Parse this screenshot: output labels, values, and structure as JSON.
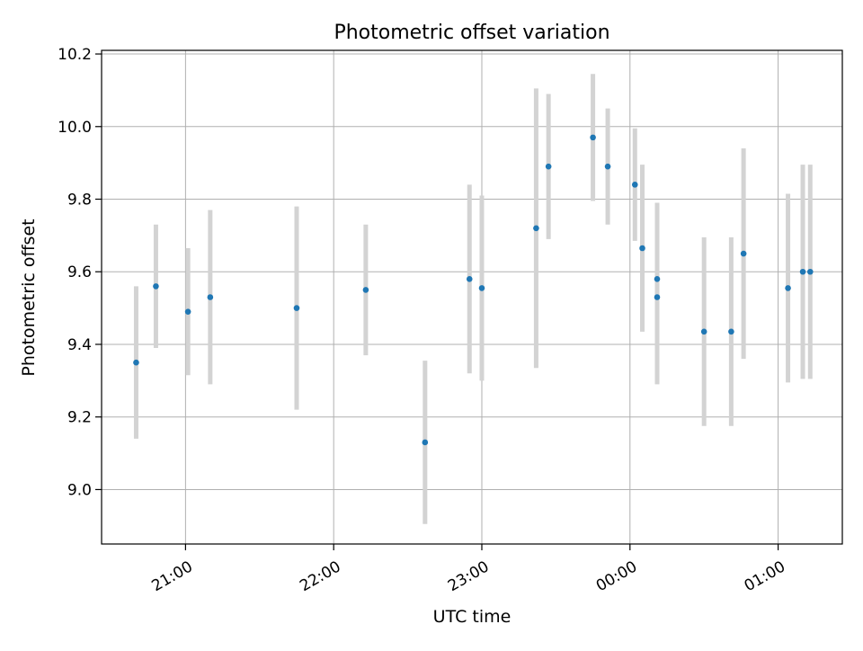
{
  "chart_data": {
    "type": "scatter",
    "title": "Photometric offset variation",
    "xlabel": "UTC time",
    "ylabel": "Photometric offset",
    "x_unit": "UTC time of day (date rolls over after 24:00)",
    "xlim": [
      "20:26",
      "25:26"
    ],
    "ylim": [
      8.85,
      10.21
    ],
    "x_ticks": [
      {
        "time": "21:00",
        "label": "21:00"
      },
      {
        "time": "22:00",
        "label": "22:00"
      },
      {
        "time": "23:00",
        "label": "23:00"
      },
      {
        "time": "24:00",
        "label": "00:00"
      },
      {
        "time": "25:00",
        "label": "01:00"
      }
    ],
    "y_ticks": [
      9.0,
      9.2,
      9.4,
      9.6,
      9.8,
      10.0,
      10.2
    ],
    "y_tick_labels": [
      "9.0",
      "9.2",
      "9.4",
      "9.6",
      "9.8",
      "10.0",
      "10.2"
    ],
    "grid": true,
    "marker_color": "#1f77b4",
    "errorbar_color": "#d3d3d3",
    "series": [
      {
        "points": [
          {
            "time": "20:40",
            "y": 9.35,
            "err": 0.21
          },
          {
            "time": "20:48",
            "y": 9.56,
            "err": 0.17
          },
          {
            "time": "21:01",
            "y": 9.49,
            "err": 0.175
          },
          {
            "time": "21:10",
            "y": 9.53,
            "err": 0.24
          },
          {
            "time": "21:45",
            "y": 9.5,
            "err": 0.28
          },
          {
            "time": "22:13",
            "y": 9.55,
            "err": 0.18
          },
          {
            "time": "22:37",
            "y": 9.13,
            "err": 0.225
          },
          {
            "time": "22:55",
            "y": 9.58,
            "err": 0.26
          },
          {
            "time": "23:00",
            "y": 9.555,
            "err": 0.255
          },
          {
            "time": "23:22",
            "y": 9.72,
            "err": 0.385
          },
          {
            "time": "23:27",
            "y": 9.89,
            "err": 0.2
          },
          {
            "time": "23:45",
            "y": 9.97,
            "err": 0.175
          },
          {
            "time": "23:51",
            "y": 9.89,
            "err": 0.16
          },
          {
            "time": "24:02",
            "y": 9.84,
            "err": 0.155
          },
          {
            "time": "24:05",
            "y": 9.665,
            "err": 0.23
          },
          {
            "time": "24:11",
            "y": 9.58,
            "err": 0.21
          },
          {
            "time": "24:11",
            "y": 9.53,
            "err": 0.24
          },
          {
            "time": "24:30",
            "y": 9.435,
            "err": 0.26
          },
          {
            "time": "24:41",
            "y": 9.435,
            "err": 0.26
          },
          {
            "time": "24:46",
            "y": 9.65,
            "err": 0.29
          },
          {
            "time": "25:04",
            "y": 9.555,
            "err": 0.26
          },
          {
            "time": "25:10",
            "y": 9.6,
            "err": 0.295
          },
          {
            "time": "25:13",
            "y": 9.6,
            "err": 0.295
          }
        ]
      }
    ]
  }
}
